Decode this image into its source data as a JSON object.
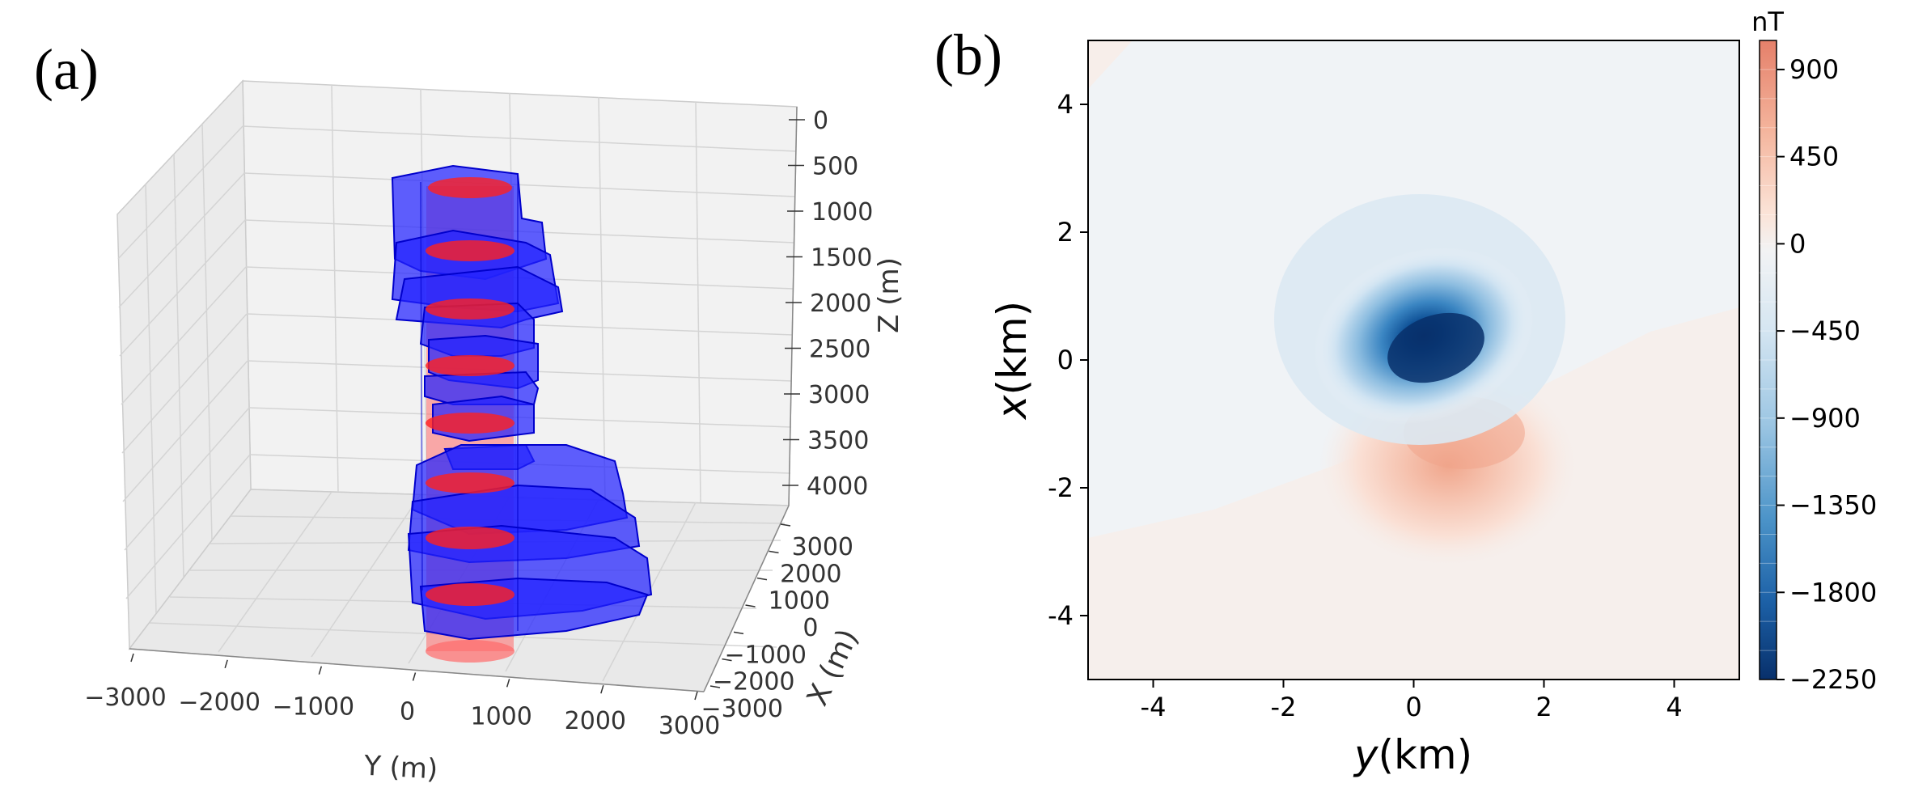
{
  "chart_data": [
    {
      "panel_label": "(a)",
      "type": "3d-prism-model",
      "xlabel": "Y (m)",
      "ylabel": "X (m)",
      "zlabel": "Z (m)",
      "y_ticks": [
        "−3000",
        "−2000",
        "−1000",
        "0",
        "1000",
        "2000",
        "3000"
      ],
      "x_ticks": [
        "3000",
        "2000",
        "1000",
        "0",
        "−1000",
        "−2000",
        "−3000"
      ],
      "z_ticks": [
        "0",
        "500",
        "1000",
        "1500",
        "2000",
        "2500",
        "3000",
        "3500",
        "4000"
      ],
      "ylim": [
        -3000,
        3000
      ],
      "xlim": [
        -3000,
        3000
      ],
      "zlim": [
        0,
        4000
      ],
      "colors": {
        "prisms": "#0000ff",
        "cylinder": "#ff0000"
      }
    },
    {
      "panel_label": "(b)",
      "type": "heatmap",
      "xlabel_italic": "y",
      "xlabel_rest": "(km)",
      "ylabel_italic": "x",
      "ylabel_rest": "(km)",
      "xlim": [
        -5,
        5
      ],
      "ylim": [
        -5,
        5
      ],
      "x_ticks": [
        "-4",
        "-2",
        "0",
        "2",
        "4"
      ],
      "y_ticks": [
        "4",
        "2",
        "0",
        "-2",
        "-4"
      ],
      "colorbar": {
        "unit": "nT",
        "range": [
          -2250,
          1050
        ],
        "ticks": [
          "900",
          "450",
          "0",
          "−450",
          "−900",
          "−1350",
          "−1800",
          "−2250"
        ],
        "min_color": "#08306b",
        "max_color": "#e5806a"
      },
      "anomaly": {
        "negative_center": [
          0.4,
          0.2
        ],
        "negative_min": -2250,
        "positive_center": [
          0.9,
          -1.1
        ],
        "positive_max": 600
      }
    }
  ]
}
